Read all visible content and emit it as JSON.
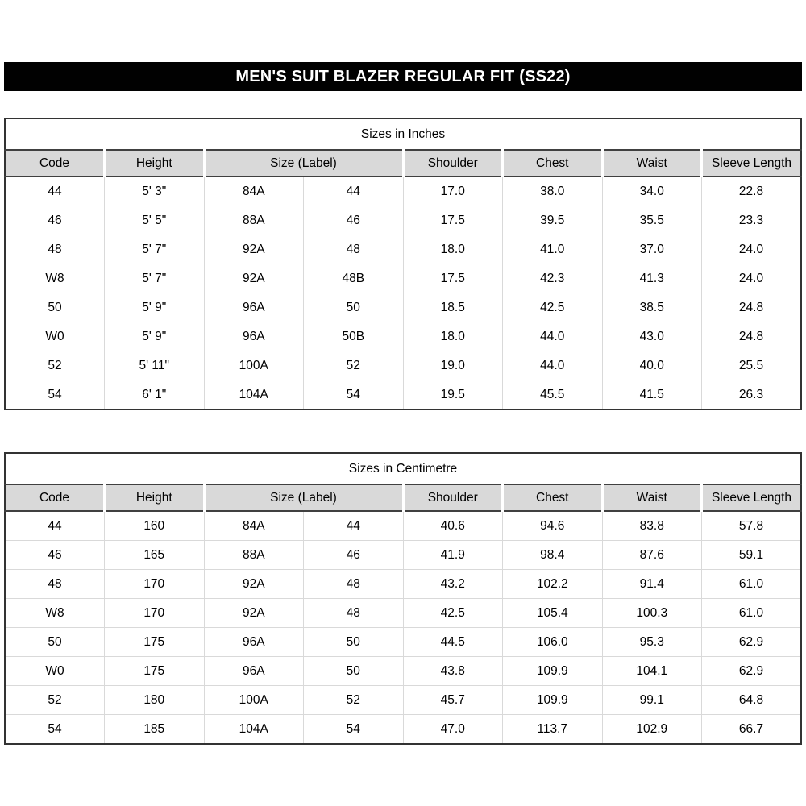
{
  "banner": {
    "title": "MEN'S SUIT BLAZER REGULAR FIT (SS22)"
  },
  "colors": {
    "banner_bg": "#010101",
    "banner_text": "#ffffff",
    "header_bg": "#d9d9d9",
    "grid_line": "#d9d9d9",
    "table_border": "#333333",
    "text": "#000000"
  },
  "tables": [
    {
      "title": "Sizes in Inches",
      "columns": [
        {
          "label": "Code",
          "span": 1
        },
        {
          "label": "Height",
          "span": 1
        },
        {
          "label": "Size (Label)",
          "span": 2
        },
        {
          "label": "Shoulder",
          "span": 1
        },
        {
          "label": "Chest",
          "span": 1
        },
        {
          "label": "Waist",
          "span": 1
        },
        {
          "label": "Sleeve Length",
          "span": 1
        }
      ],
      "rows": [
        [
          "44",
          "5' 3\"",
          "84A",
          "44",
          "17.0",
          "38.0",
          "34.0",
          "22.8"
        ],
        [
          "46",
          "5' 5\"",
          "88A",
          "46",
          "17.5",
          "39.5",
          "35.5",
          "23.3"
        ],
        [
          "48",
          "5' 7\"",
          "92A",
          "48",
          "18.0",
          "41.0",
          "37.0",
          "24.0"
        ],
        [
          "W8",
          "5' 7\"",
          "92A",
          "48B",
          "17.5",
          "42.3",
          "41.3",
          "24.0"
        ],
        [
          "50",
          "5' 9\"",
          "96A",
          "50",
          "18.5",
          "42.5",
          "38.5",
          "24.8"
        ],
        [
          "W0",
          "5' 9\"",
          "96A",
          "50B",
          "18.0",
          "44.0",
          "43.0",
          "24.8"
        ],
        [
          "52",
          "5' 11\"",
          "100A",
          "52",
          "19.0",
          "44.0",
          "40.0",
          "25.5"
        ],
        [
          "54",
          "6' 1\"",
          "104A",
          "54",
          "19.5",
          "45.5",
          "41.5",
          "26.3"
        ]
      ]
    },
    {
      "title": "Sizes in Centimetre",
      "columns": [
        {
          "label": "Code",
          "span": 1
        },
        {
          "label": "Height",
          "span": 1
        },
        {
          "label": "Size (Label)",
          "span": 2
        },
        {
          "label": "Shoulder",
          "span": 1
        },
        {
          "label": "Chest",
          "span": 1
        },
        {
          "label": "Waist",
          "span": 1
        },
        {
          "label": "Sleeve Length",
          "span": 1
        }
      ],
      "rows": [
        [
          "44",
          "160",
          "84A",
          "44",
          "40.6",
          "94.6",
          "83.8",
          "57.8"
        ],
        [
          "46",
          "165",
          "88A",
          "46",
          "41.9",
          "98.4",
          "87.6",
          "59.1"
        ],
        [
          "48",
          "170",
          "92A",
          "48",
          "43.2",
          "102.2",
          "91.4",
          "61.0"
        ],
        [
          "W8",
          "170",
          "92A",
          "48",
          "42.5",
          "105.4",
          "100.3",
          "61.0"
        ],
        [
          "50",
          "175",
          "96A",
          "50",
          "44.5",
          "106.0",
          "95.3",
          "62.9"
        ],
        [
          "W0",
          "175",
          "96A",
          "50",
          "43.8",
          "109.9",
          "104.1",
          "62.9"
        ],
        [
          "52",
          "180",
          "100A",
          "52",
          "45.7",
          "109.9",
          "99.1",
          "64.8"
        ],
        [
          "54",
          "185",
          "104A",
          "54",
          "47.0",
          "113.7",
          "102.9",
          "66.7"
        ]
      ]
    }
  ]
}
